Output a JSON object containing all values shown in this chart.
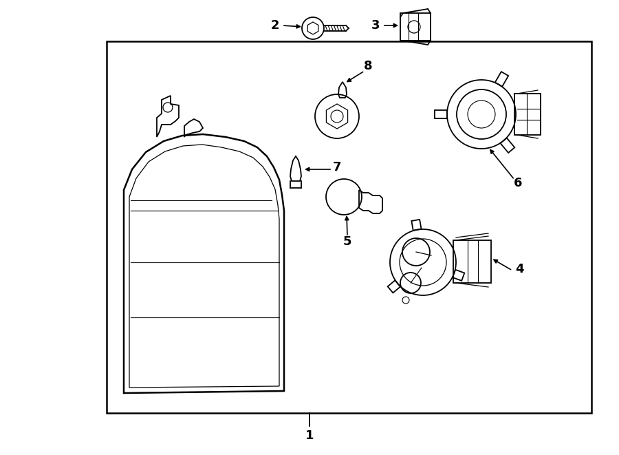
{
  "bg_color": "#ffffff",
  "line_color": "#000000",
  "fig_width": 9.0,
  "fig_height": 6.61,
  "dpi": 100,
  "lw": 1.3
}
